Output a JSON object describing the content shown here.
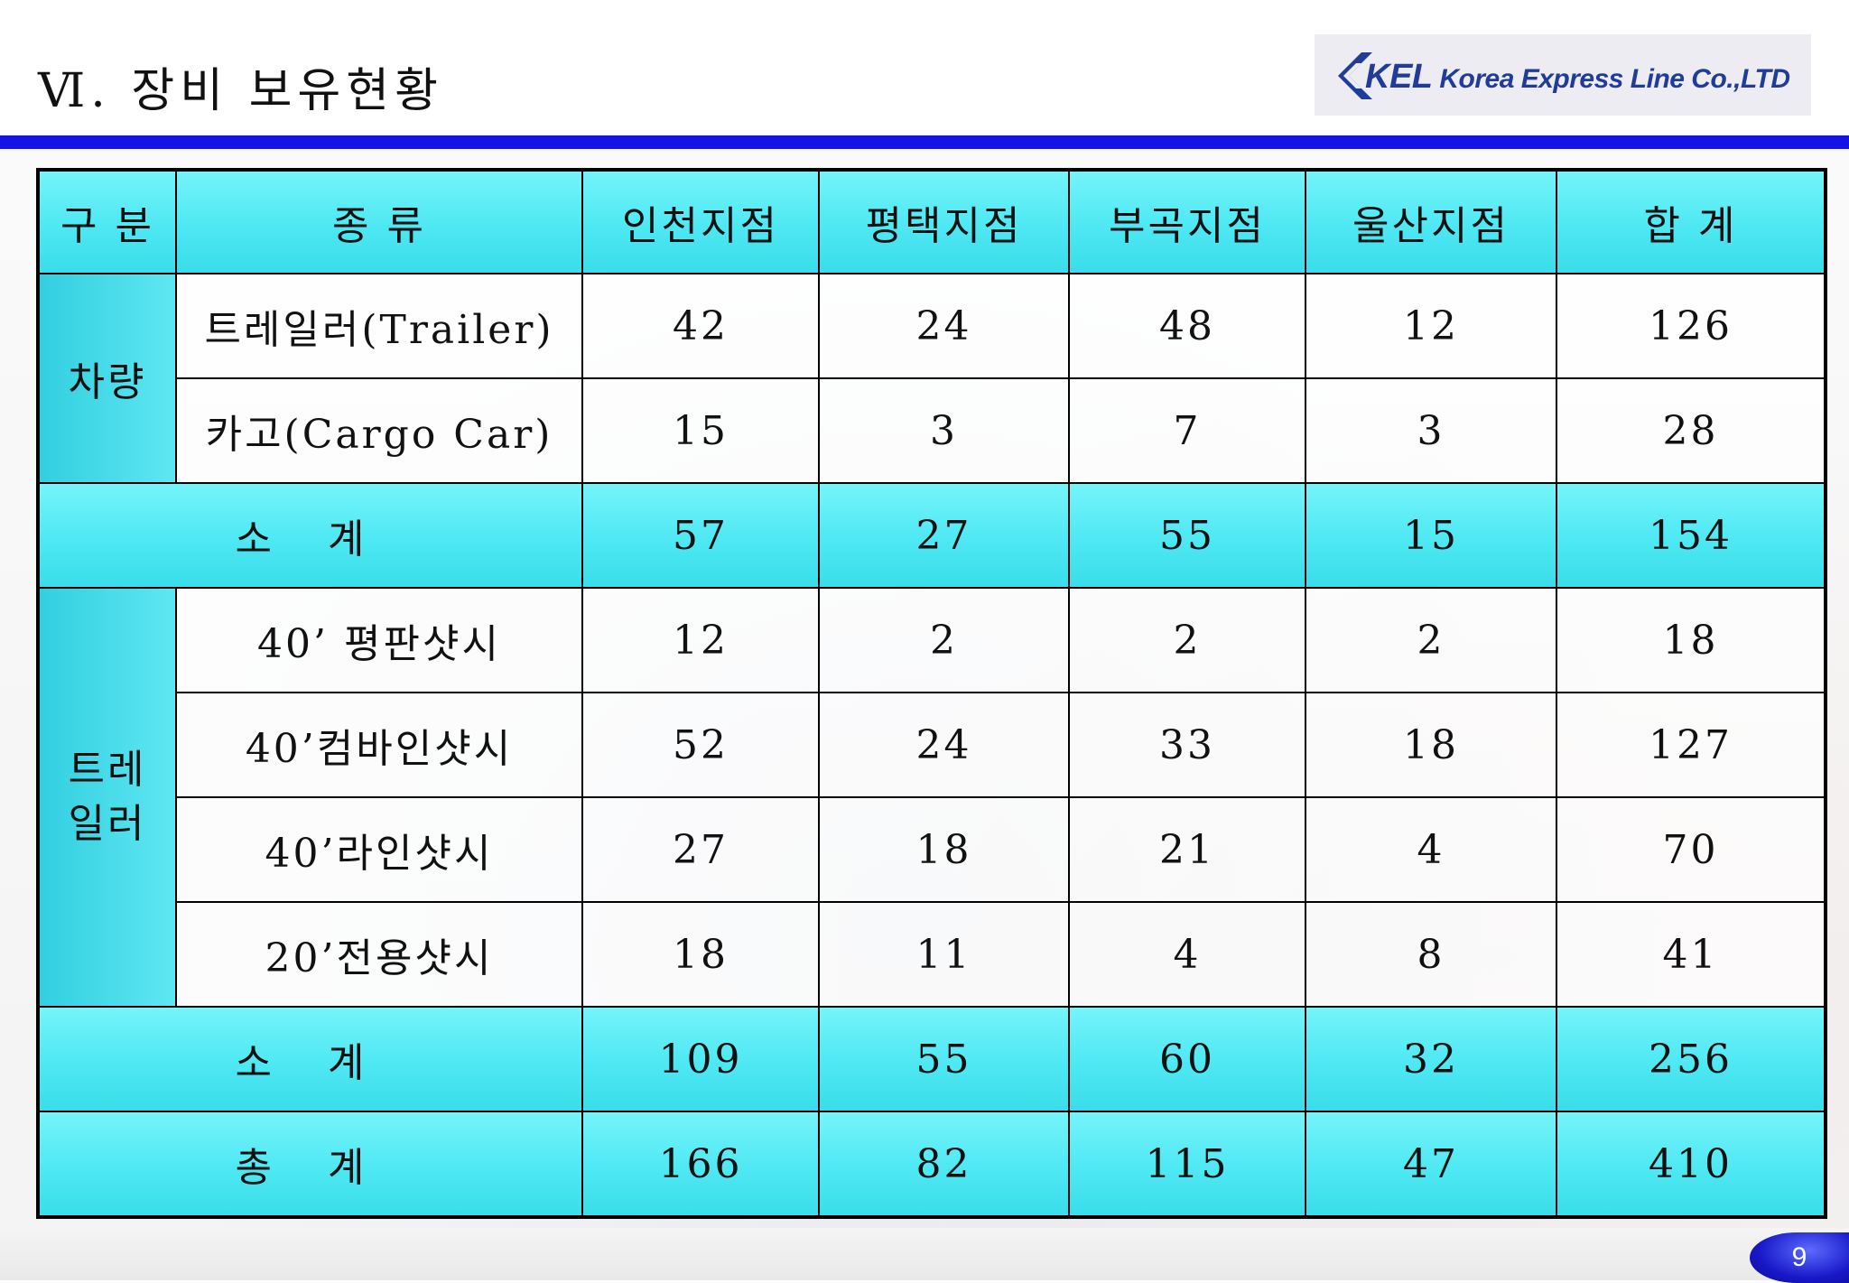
{
  "page": {
    "title": "Ⅵ. 장비 보유현황",
    "page_number": "9"
  },
  "logo": {
    "mark": "KEL",
    "text": "Korea Express Line Co.,LTD",
    "color": "#1f3c9a"
  },
  "colors": {
    "header_cyan": "#4ee8f3",
    "rule_blue": "#1414e6"
  },
  "table": {
    "headers": [
      "구 분",
      "종 류",
      "인천지점",
      "평택지점",
      "부곡지점",
      "울산지점",
      "합 계"
    ],
    "group_vehicle": "차량",
    "group_trailer": "트레\n일러",
    "vehicle_rows": [
      {
        "type": "트레일러(Trailer)",
        "values": [
          "42",
          "24",
          "48",
          "12",
          "126"
        ]
      },
      {
        "type": "카고(Cargo Car)",
        "values": [
          "15",
          "3",
          "7",
          "3",
          "28"
        ]
      }
    ],
    "vehicle_subtotal": {
      "label": "소 계",
      "values": [
        "57",
        "27",
        "55",
        "15",
        "154"
      ]
    },
    "trailer_rows": [
      {
        "type": "40’ 평판샷시",
        "values": [
          "12",
          "2",
          "2",
          "2",
          "18"
        ]
      },
      {
        "type": "40’컴바인샷시",
        "values": [
          "52",
          "24",
          "33",
          "18",
          "127"
        ]
      },
      {
        "type": "40’라인샷시",
        "values": [
          "27",
          "18",
          "21",
          "4",
          "70"
        ]
      },
      {
        "type": "20’전용샷시",
        "values": [
          "18",
          "11",
          "4",
          "8",
          "41"
        ]
      }
    ],
    "trailer_subtotal": {
      "label": "소 계",
      "values": [
        "109",
        "55",
        "60",
        "32",
        "256"
      ]
    },
    "grand_total": {
      "label": "총 계",
      "values": [
        "166",
        "82",
        "115",
        "47",
        "410"
      ]
    }
  }
}
